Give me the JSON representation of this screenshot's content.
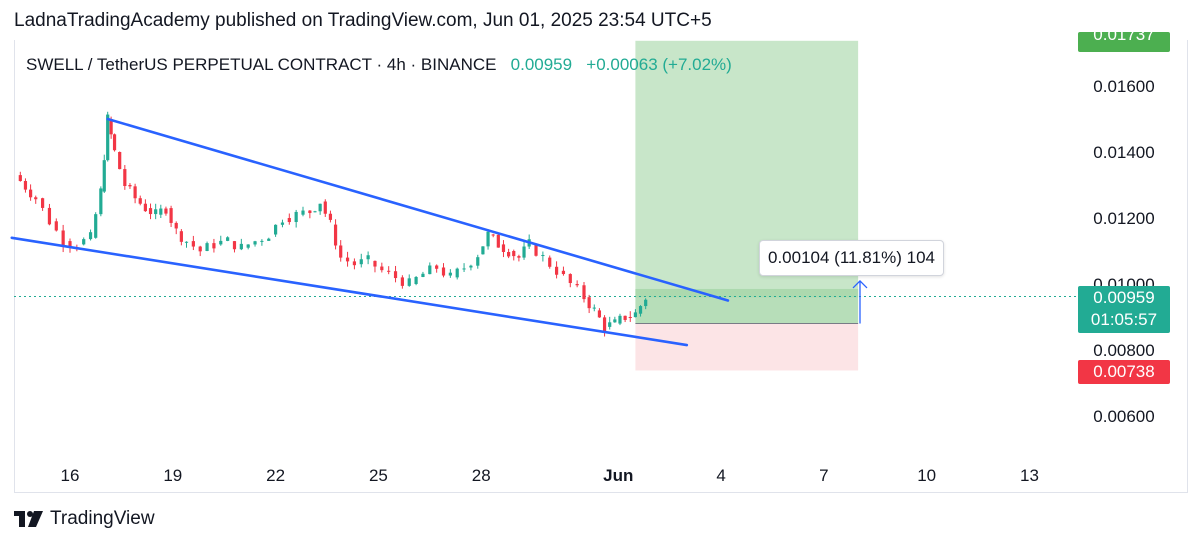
{
  "header": {
    "published_line": "LadnaTradingAcademy published on TradingView.com, Jun 01, 2025 23:54 UTC+5"
  },
  "symbol": {
    "title": "SWELL / TetherUS PERPETUAL CONTRACT · 4h · BINANCE",
    "price": "0.00959",
    "change": "+0.00063 (+7.02%)"
  },
  "measure": {
    "label": "0.00104 (11.81%) 104"
  },
  "price_tags": {
    "target": "0.01737",
    "current": "0.00959",
    "countdown": "01:05:57",
    "stop": "0.00738"
  },
  "colors": {
    "up": "#22ab94",
    "down": "#f23645",
    "trendline": "#2962ff",
    "profit_zone": "#c8e6c9",
    "loss_zone": "#fce4e6",
    "target_tag": "#4caf50",
    "current_tag": "#22ab94",
    "stop_tag": "#f23645"
  },
  "footer": {
    "brand": "TradingView",
    "logo_icon": "tradingview-logo-icon"
  },
  "chart_data": {
    "type": "candlestick",
    "symbol": "SWELL/USDT Perp",
    "timeframe": "4h",
    "y_axis": {
      "ticks": [
        0.016,
        0.014,
        0.012,
        0.01,
        0.008,
        0.006
      ],
      "tick_labels": [
        "0.01600",
        "0.01400",
        "0.01200",
        "0.01000",
        "0.00800",
        "0.00600"
      ],
      "range": [
        0.0047,
        0.0175
      ]
    },
    "x_axis": {
      "tick_labels": [
        "16",
        "19",
        "22",
        "25",
        "28",
        "Jun",
        "4",
        "7",
        "10",
        "13"
      ],
      "tick_days": [
        16,
        19,
        22,
        25,
        28,
        32,
        35,
        38,
        41,
        44
      ],
      "range_days": [
        14.3,
        46.5
      ],
      "bold_label": "Jun"
    },
    "close_points_day_price": [
      [
        14.4,
        0.0133
      ],
      [
        15.0,
        0.0126
      ],
      [
        15.4,
        0.0119
      ],
      [
        15.8,
        0.0113
      ],
      [
        16.2,
        0.0112
      ],
      [
        16.6,
        0.0114
      ],
      [
        16.9,
        0.0128
      ],
      [
        17.1,
        0.015
      ],
      [
        17.3,
        0.014
      ],
      [
        17.6,
        0.013
      ],
      [
        17.9,
        0.0126
      ],
      [
        18.2,
        0.0123
      ],
      [
        18.5,
        0.0121
      ],
      [
        18.8,
        0.0123
      ],
      [
        19.1,
        0.0116
      ],
      [
        19.4,
        0.0113
      ],
      [
        19.8,
        0.011
      ],
      [
        20.2,
        0.0112
      ],
      [
        20.6,
        0.0113
      ],
      [
        21.0,
        0.0111
      ],
      [
        21.4,
        0.0113
      ],
      [
        21.8,
        0.0115
      ],
      [
        22.2,
        0.012
      ],
      [
        22.6,
        0.0121
      ],
      [
        23.0,
        0.0122
      ],
      [
        23.3,
        0.0125
      ],
      [
        23.6,
        0.0118
      ],
      [
        23.9,
        0.0108
      ],
      [
        24.3,
        0.0106
      ],
      [
        24.7,
        0.0107
      ],
      [
        25.1,
        0.0104
      ],
      [
        25.5,
        0.0102
      ],
      [
        25.9,
        0.01
      ],
      [
        26.3,
        0.0103
      ],
      [
        26.7,
        0.0105
      ],
      [
        27.1,
        0.0102
      ],
      [
        27.5,
        0.0105
      ],
      [
        27.9,
        0.0109
      ],
      [
        28.2,
        0.0115
      ],
      [
        28.5,
        0.0112
      ],
      [
        28.8,
        0.011
      ],
      [
        29.1,
        0.0108
      ],
      [
        29.4,
        0.0112
      ],
      [
        29.8,
        0.0108
      ],
      [
        30.2,
        0.0104
      ],
      [
        30.6,
        0.01
      ],
      [
        31.0,
        0.0096
      ],
      [
        31.3,
        0.0092
      ],
      [
        31.6,
        0.0087
      ],
      [
        31.9,
        0.0088
      ],
      [
        32.2,
        0.009
      ],
      [
        32.5,
        0.0091
      ],
      [
        32.8,
        0.00959
      ]
    ],
    "trendlines": [
      {
        "name": "upper",
        "from": [
          17.1,
          0.015
        ],
        "to": [
          35.2,
          0.0095
        ]
      },
      {
        "name": "lower",
        "from": [
          14.3,
          0.0114
        ],
        "to": [
          34.0,
          0.00815
        ]
      }
    ],
    "long_position": {
      "entry": 0.00959,
      "target": 0.01737,
      "stop": 0.00738,
      "from_day": 32.5,
      "to_day": 39.0
    },
    "current_price": 0.00959,
    "measure_marker_price": 0.00985
  }
}
